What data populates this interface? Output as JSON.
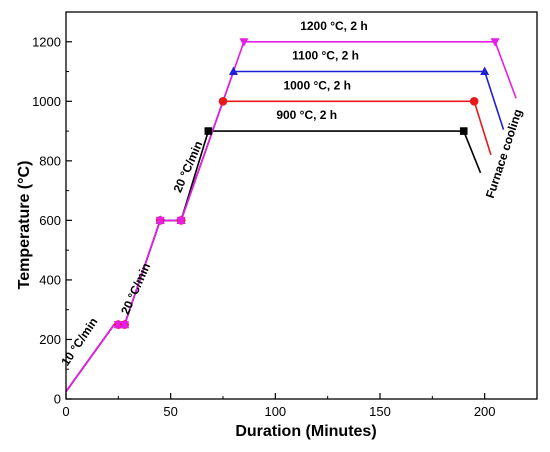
{
  "chart_data": {
    "type": "line",
    "xlabel": "Duration (Minutes)",
    "ylabel": "Temperature (°C)",
    "xlim": [
      0,
      225
    ],
    "ylim": [
      0,
      1300
    ],
    "xticks": [
      0,
      50,
      100,
      150,
      200
    ],
    "yticks": [
      0,
      200,
      400,
      600,
      800,
      1000,
      1200
    ],
    "grid": false,
    "series": [
      {
        "color": "#000000",
        "marker": "square",
        "points": [
          [
            0,
            25
          ],
          [
            23,
            250
          ],
          [
            28,
            250
          ],
          [
            45,
            600
          ],
          [
            55,
            600
          ],
          [
            68,
            900
          ],
          [
            190,
            900
          ],
          [
            198,
            760
          ]
        ],
        "markers": [
          [
            68,
            900
          ],
          [
            190,
            900
          ]
        ]
      },
      {
        "color": "#e8191b",
        "marker": "circle",
        "points": [
          [
            0,
            25
          ],
          [
            23,
            250
          ],
          [
            28,
            250
          ],
          [
            45,
            600
          ],
          [
            55,
            600
          ],
          [
            75,
            1000
          ],
          [
            195,
            1000
          ],
          [
            203,
            820
          ]
        ],
        "markers": [
          [
            75,
            1000
          ],
          [
            195,
            1000
          ]
        ]
      },
      {
        "color": "#1f1fd6",
        "marker": "triangle-up",
        "points": [
          [
            0,
            25
          ],
          [
            23,
            250
          ],
          [
            28,
            250
          ],
          [
            45,
            600
          ],
          [
            55,
            600
          ],
          [
            80,
            1100
          ],
          [
            200,
            1100
          ],
          [
            209,
            905
          ]
        ],
        "markers": [
          [
            80,
            1100
          ],
          [
            200,
            1100
          ]
        ]
      },
      {
        "color": "#e61ee6",
        "marker": "triangle-down",
        "points": [
          [
            0,
            25
          ],
          [
            23,
            250
          ],
          [
            28,
            250
          ],
          [
            45,
            600
          ],
          [
            55,
            600
          ],
          [
            85,
            1200
          ],
          [
            205,
            1200
          ],
          [
            215,
            1010
          ]
        ],
        "markers": [
          [
            25,
            250
          ],
          [
            28,
            250
          ],
          [
            45,
            600
          ],
          [
            55,
            600
          ],
          [
            85,
            1200
          ],
          [
            205,
            1200
          ]
        ]
      }
    ],
    "hold_labels": [
      {
        "text": "900 °C, 2 h",
        "x": 115,
        "y": 940
      },
      {
        "text": "1000 °C, 2 h",
        "x": 120,
        "y": 1040
      },
      {
        "text": "1100 °C, 2 h",
        "x": 124,
        "y": 1140
      },
      {
        "text": "1200 °C, 2 h",
        "x": 128,
        "y": 1240
      }
    ],
    "ramp_labels": [
      {
        "text": "10 °C/min",
        "x": 8,
        "y": 185,
        "angle": -56
      },
      {
        "text": "20 °C/min",
        "x": 35,
        "y": 365,
        "angle": -66
      },
      {
        "text": "20 °C/min",
        "x": 60,
        "y": 775,
        "angle": -66
      }
    ],
    "cooling_label": {
      "text": "Furnace cooling",
      "x": 211,
      "y": 820,
      "angle": -72
    }
  }
}
